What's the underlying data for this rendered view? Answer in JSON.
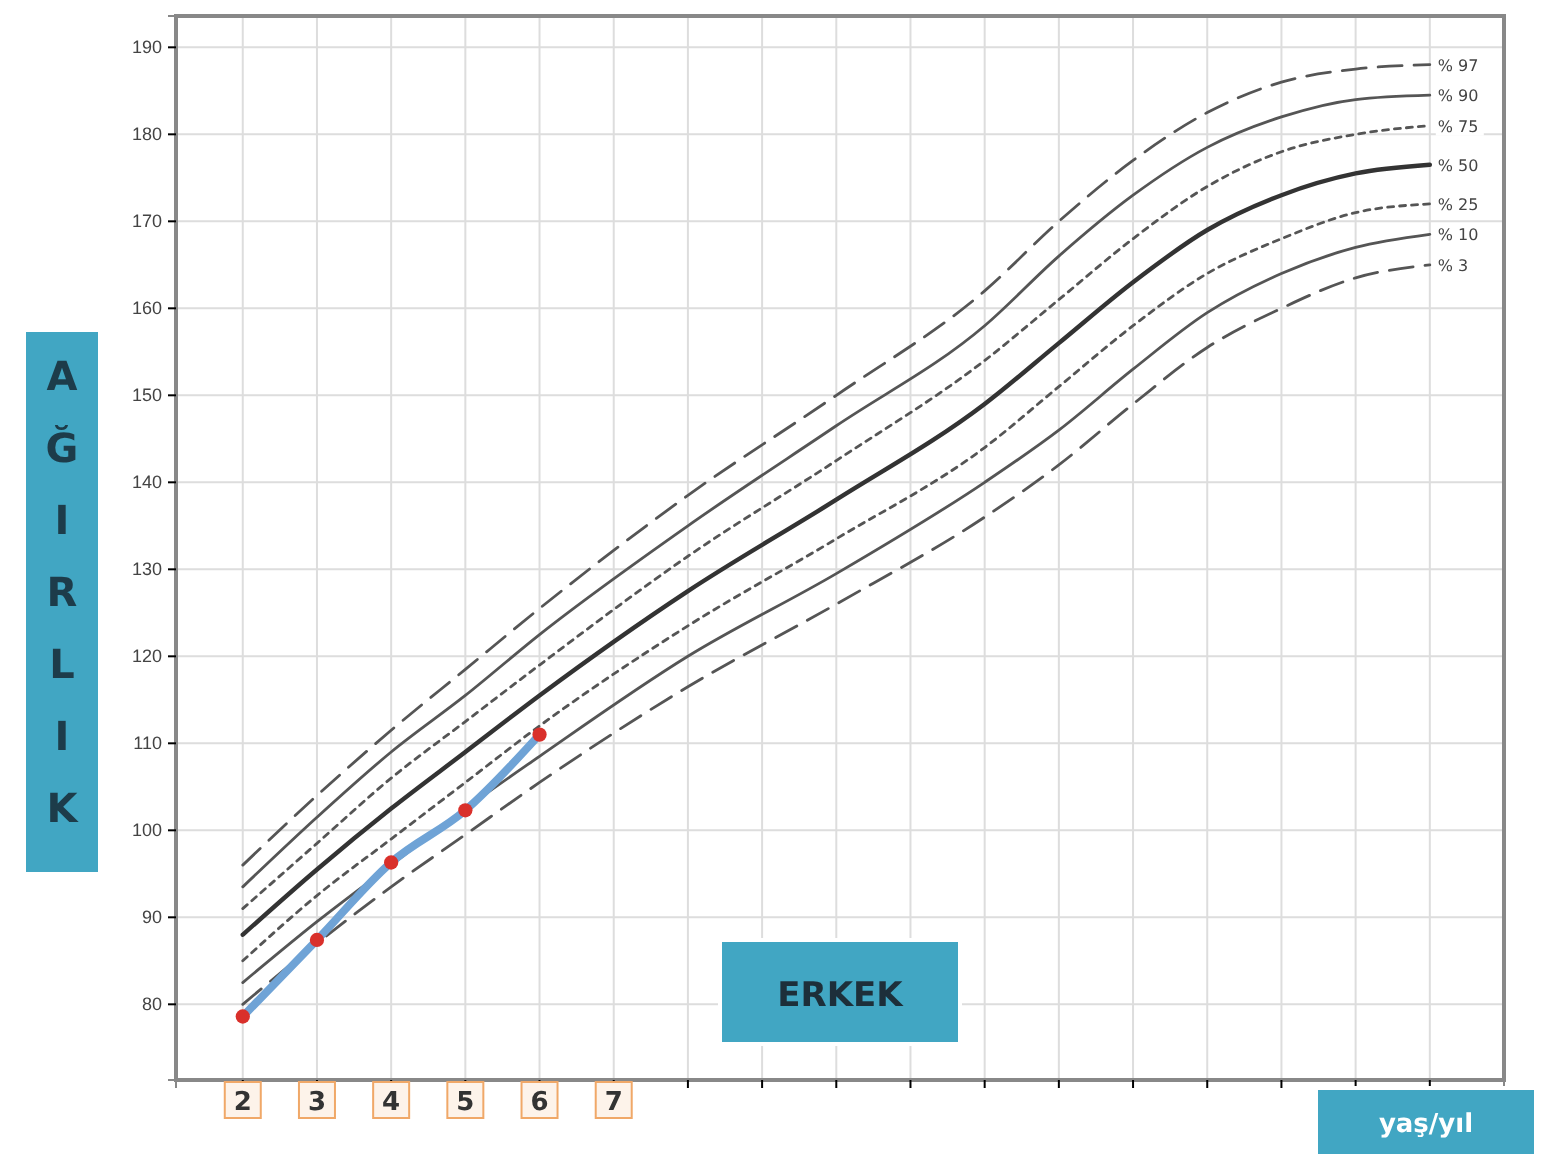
{
  "chart_data": {
    "type": "line",
    "annotations": [
      "ERKEK"
    ],
    "xlabel": "yaş/yıl",
    "ylabel": "AĞIRLIK",
    "xlim": [
      1.1,
      19
    ],
    "xticks": [
      2,
      3,
      4,
      5,
      6,
      7,
      {
        "value": 8,
        "label": null
      },
      {
        "value": 9,
        "label": null
      },
      {
        "value": 10,
        "label": null
      },
      {
        "value": 11,
        "label": null
      },
      {
        "value": 12,
        "label": null
      },
      {
        "value": 13,
        "label": null
      },
      {
        "value": 14,
        "label": null
      },
      {
        "value": 15,
        "label": null
      },
      {
        "value": 16,
        "label": null
      },
      {
        "value": 17,
        "label": null
      },
      {
        "value": 18,
        "label": null
      }
    ],
    "ylim": [
      71.3,
      193.6
    ],
    "yticks": [
      80,
      90,
      100,
      110,
      120,
      130,
      140,
      150,
      160,
      170,
      180,
      190
    ],
    "grid": true,
    "legend": false,
    "x": [
      2,
      3,
      4,
      5,
      6,
      8,
      10,
      12,
      13,
      14,
      15,
      16,
      17,
      18
    ],
    "series": [
      {
        "name": "% 97",
        "color": "#555555",
        "line_style": "dashed",
        "values": [
          96,
          104,
          111.5,
          118.5,
          125.5,
          138.5,
          150,
          162,
          170,
          177,
          182.5,
          186,
          187.5,
          188
        ]
      },
      {
        "name": "% 90",
        "color": "#555555",
        "line_style": "solid",
        "values": [
          93.5,
          101.5,
          109,
          115.5,
          122.5,
          135,
          146.5,
          158,
          166,
          173,
          178.5,
          182,
          184,
          184.5
        ]
      },
      {
        "name": "% 75",
        "color": "#555555",
        "line_style": "dotted",
        "values": [
          91,
          98.5,
          106,
          112.5,
          119,
          131.5,
          142.5,
          154,
          161,
          168,
          174,
          178,
          180,
          181
        ]
      },
      {
        "name": "% 50",
        "color": "#333333",
        "line_style": "solid",
        "values": [
          88,
          95.5,
          102.5,
          109,
          115.5,
          127.5,
          138,
          149,
          156,
          163,
          169,
          173,
          175.5,
          176.5
        ]
      },
      {
        "name": "% 25",
        "color": "#555555",
        "line_style": "dotted",
        "values": [
          85,
          92.5,
          99,
          105.5,
          112,
          123.5,
          133.5,
          144,
          151,
          158,
          164,
          168,
          171,
          172
        ]
      },
      {
        "name": "% 10",
        "color": "#555555",
        "line_style": "solid",
        "values": [
          82.5,
          89.5,
          96,
          102.5,
          108.5,
          120,
          129.5,
          140,
          146,
          153,
          159.5,
          164,
          167,
          168.5
        ]
      },
      {
        "name": "% 3",
        "color": "#555555",
        "line_style": "dashed",
        "values": [
          80,
          87,
          93.5,
          99.5,
          105.5,
          116.5,
          126,
          136,
          142,
          149,
          155.5,
          160,
          163.5,
          165
        ]
      },
      {
        "type": "line",
        "color": "#6fa3d6",
        "line_style": "solid",
        "x": [
          2,
          3,
          4,
          5,
          6
        ],
        "values": [
          78.6,
          87.4,
          96.3,
          102.3,
          111.0
        ]
      },
      {
        "type": "scatter",
        "color": "#d9302b",
        "marker": "circle",
        "x": [
          2,
          3,
          4,
          5,
          6
        ],
        "values": [
          78.6,
          87.4,
          96.3,
          102.3,
          111.0
        ]
      }
    ]
  }
}
